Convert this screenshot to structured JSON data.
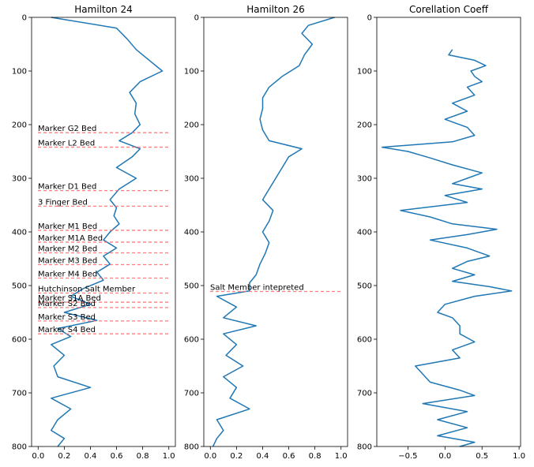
{
  "chart_data": [
    {
      "type": "line",
      "title": "Hamilton 24",
      "orientation": "vertical-depth",
      "xlim": [
        -0.05,
        1.05
      ],
      "ylim": [
        800,
        0
      ],
      "xticks": [
        0.0,
        0.2,
        0.4,
        0.6,
        0.8,
        1.0
      ],
      "xtick_labels": [
        "0.0",
        "0.2",
        "0.4",
        "0.6",
        "0.8",
        "1.0"
      ],
      "yticks": [
        0,
        100,
        200,
        300,
        400,
        500,
        600,
        700,
        800
      ],
      "ytick_labels": [
        "0",
        "100",
        "200",
        "300",
        "400",
        "500",
        "600",
        "700",
        "800"
      ],
      "grid": false,
      "series": [
        {
          "color": "#1f77b4",
          "depth": [
            0,
            20,
            40,
            60,
            80,
            100,
            120,
            140,
            160,
            180,
            200,
            215,
            230,
            245,
            260,
            280,
            300,
            320,
            340,
            355,
            370,
            385,
            400,
            415,
            430,
            445,
            460,
            475,
            490,
            505,
            520,
            535,
            550,
            565,
            580,
            595,
            610,
            630,
            650,
            670,
            690,
            710,
            730,
            750,
            770,
            785,
            800
          ],
          "value": [
            0.1,
            0.6,
            0.68,
            0.75,
            0.85,
            0.95,
            0.78,
            0.7,
            0.75,
            0.74,
            0.78,
            0.72,
            0.62,
            0.78,
            0.72,
            0.6,
            0.75,
            0.62,
            0.55,
            0.6,
            0.58,
            0.62,
            0.55,
            0.5,
            0.6,
            0.5,
            0.55,
            0.45,
            0.5,
            0.35,
            0.25,
            0.4,
            0.2,
            0.45,
            0.15,
            0.25,
            0.1,
            0.2,
            0.12,
            0.15,
            0.4,
            0.1,
            0.25,
            0.15,
            0.1,
            0.2,
            0.15
          ]
        }
      ],
      "markers": [
        {
          "label": "Marker G2 Bed",
          "depth": 215
        },
        {
          "label": "Marker L2 Bed",
          "depth": 242
        },
        {
          "label": "Marker D1 Bed",
          "depth": 323
        },
        {
          "label": "3 Finger Bed",
          "depth": 352
        },
        {
          "label": "Marker M1 Bed",
          "depth": 397
        },
        {
          "label": "Marker M1A Bed",
          "depth": 419
        },
        {
          "label": "Marker M2 Bed",
          "depth": 439
        },
        {
          "label": "Marker M3 Bed",
          "depth": 461
        },
        {
          "label": "Marker M4 Bed",
          "depth": 486
        },
        {
          "label": "Hutchinson Salt Member",
          "depth": 514
        },
        {
          "label": "Marker S1A Bed",
          "depth": 531
        },
        {
          "label": "Marker S2 Bed",
          "depth": 541
        },
        {
          "label": "Marker S3 Bed",
          "depth": 566
        },
        {
          "label": "Marker S4 Bed",
          "depth": 590
        }
      ]
    },
    {
      "type": "line",
      "title": "Hamilton 26",
      "orientation": "vertical-depth",
      "xlim": [
        -0.05,
        1.05
      ],
      "ylim": [
        800,
        0
      ],
      "xticks": [
        0.0,
        0.2,
        0.4,
        0.6,
        0.8,
        1.0
      ],
      "xtick_labels": [
        "0.0",
        "0.2",
        "0.4",
        "0.6",
        "0.8",
        "1.0"
      ],
      "yticks": [
        0,
        100,
        200,
        300,
        400,
        500,
        600,
        700,
        800
      ],
      "ytick_labels": [
        "0",
        "100",
        "200",
        "300",
        "400",
        "500",
        "600",
        "700",
        "800"
      ],
      "grid": false,
      "series": [
        {
          "color": "#1f77b4",
          "depth": [
            0,
            15,
            30,
            50,
            70,
            90,
            110,
            130,
            150,
            170,
            190,
            210,
            230,
            245,
            260,
            280,
            300,
            320,
            340,
            360,
            380,
            400,
            420,
            440,
            460,
            480,
            495,
            510,
            520,
            540,
            560,
            575,
            590,
            610,
            630,
            650,
            670,
            690,
            710,
            730,
            750,
            770,
            785,
            800
          ],
          "value": [
            0.95,
            0.75,
            0.7,
            0.78,
            0.72,
            0.68,
            0.55,
            0.45,
            0.4,
            0.4,
            0.38,
            0.4,
            0.45,
            0.7,
            0.6,
            0.55,
            0.5,
            0.45,
            0.4,
            0.48,
            0.45,
            0.4,
            0.45,
            0.42,
            0.38,
            0.35,
            0.3,
            0.3,
            0.05,
            0.2,
            0.1,
            0.35,
            0.1,
            0.2,
            0.12,
            0.25,
            0.1,
            0.2,
            0.15,
            0.3,
            0.05,
            0.1,
            0.05,
            0.02
          ]
        }
      ],
      "markers": [
        {
          "label": "Salt Member intepreted",
          "depth": 511
        }
      ]
    },
    {
      "type": "line",
      "title": "Corellation Coeff",
      "orientation": "vertical-depth",
      "xlim": [
        -0.92,
        1.02
      ],
      "ylim": [
        800,
        0
      ],
      "xticks": [
        -0.5,
        0.0,
        0.5,
        1.0
      ],
      "xtick_labels": [
        "−0.5",
        "0.0",
        "0.5",
        "1.0"
      ],
      "yticks": [
        0,
        100,
        200,
        300,
        400,
        500,
        600,
        700,
        800
      ],
      "ytick_labels": [
        "0",
        "100",
        "200",
        "300",
        "400",
        "500",
        "600",
        "700",
        "800"
      ],
      "grid": false,
      "series": [
        {
          "color": "#1f77b4",
          "depth": [
            60,
            70,
            80,
            90,
            100,
            110,
            120,
            130,
            145,
            160,
            175,
            190,
            205,
            220,
            232,
            242,
            250,
            262,
            275,
            290,
            300,
            310,
            320,
            332,
            345,
            360,
            372,
            385,
            395,
            405,
            415,
            430,
            445,
            455,
            468,
            480,
            492,
            502,
            510,
            520,
            535,
            550,
            560,
            575,
            590,
            605,
            620,
            635,
            650,
            665,
            680,
            695,
            705,
            720,
            735,
            750,
            765,
            780,
            792,
            800
          ],
          "value": [
            0.1,
            0.05,
            0.4,
            0.55,
            0.35,
            0.4,
            0.5,
            0.3,
            0.4,
            0.1,
            0.3,
            0.0,
            0.3,
            0.4,
            0.1,
            -0.85,
            -0.5,
            -0.2,
            0.1,
            0.5,
            0.3,
            0.1,
            0.5,
            0.0,
            0.3,
            -0.6,
            -0.2,
            0.1,
            0.7,
            0.3,
            -0.2,
            0.3,
            0.6,
            0.3,
            0.1,
            0.4,
            0.1,
            0.6,
            0.9,
            0.4,
            0.0,
            -0.1,
            0.1,
            0.2,
            0.2,
            0.4,
            0.1,
            0.2,
            -0.4,
            -0.3,
            -0.2,
            0.2,
            0.4,
            -0.3,
            0.3,
            -0.1,
            0.3,
            -0.1,
            0.4,
            0.2
          ]
        }
      ],
      "markers": []
    }
  ]
}
